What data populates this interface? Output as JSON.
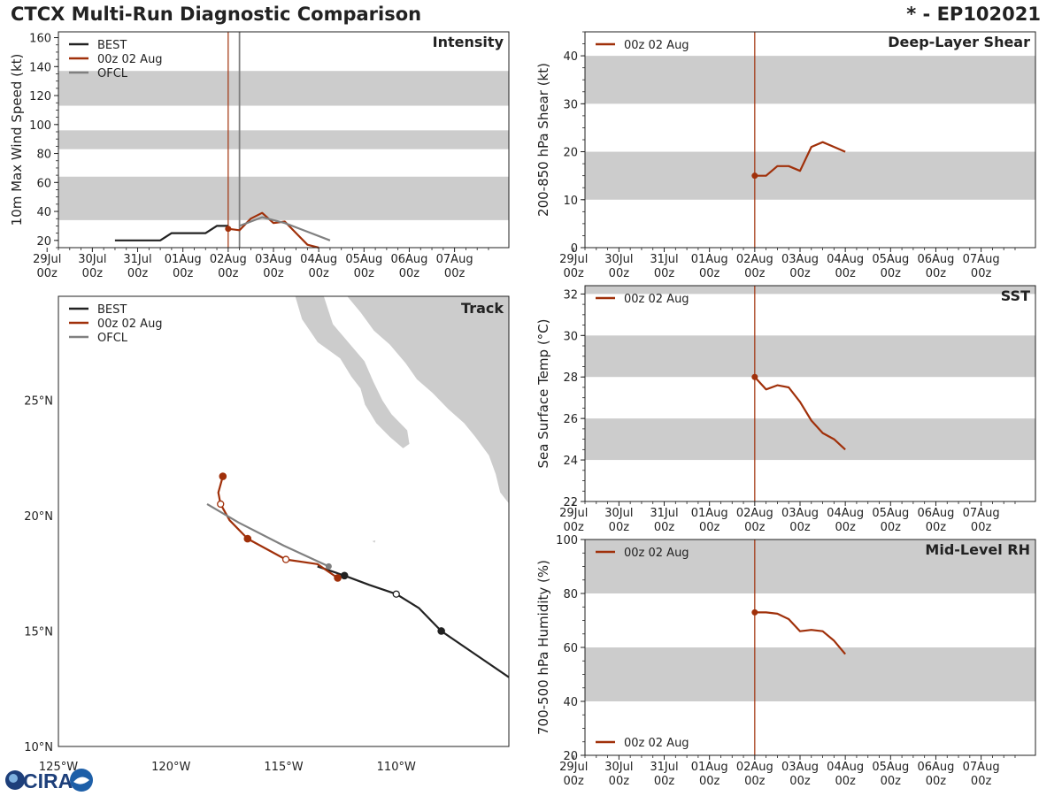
{
  "header": {
    "title": "CTCX Multi-Run Diagnostic Comparison",
    "storm": "* - EP102021"
  },
  "logo": {
    "text": "CIRA"
  },
  "colors": {
    "best": "#222222",
    "run": "#a0300a",
    "ofcl": "#808080",
    "band": "#cccccc",
    "land": "#cccccc"
  },
  "time_axis": {
    "labels": [
      "29Jul",
      "30Jul",
      "31Jul",
      "01Aug",
      "02Aug",
      "03Aug",
      "04Aug",
      "05Aug",
      "06Aug",
      "07Aug"
    ],
    "sublabels": [
      "00z",
      "00z",
      "00z",
      "00z",
      "00z",
      "00z",
      "00z",
      "00z",
      "00z",
      "00z"
    ],
    "range_days": [
      -3.75,
      6.2
    ],
    "run_time_day": 0
  },
  "chart_data": [
    {
      "id": "intensity",
      "type": "line",
      "title": "Intensity",
      "ylabel": "10m Max Wind Speed (kt)",
      "ylim": [
        15,
        164
      ],
      "yticks": [
        20,
        40,
        60,
        80,
        100,
        120,
        140,
        160
      ],
      "bands": [
        [
          34,
          64
        ],
        [
          83,
          96
        ],
        [
          113,
          137
        ]
      ],
      "ofcl_time_day": 0.25,
      "legend": [
        "BEST",
        "00z 02 Aug",
        "OFCL"
      ],
      "series": [
        {
          "name": "BEST",
          "x": [
            -2.5,
            -2.0,
            -1.5,
            -1.25,
            -1.0,
            -0.5,
            -0.25,
            0
          ],
          "y": [
            20,
            20,
            20,
            25,
            25,
            25,
            30,
            30
          ]
        },
        {
          "name": "00z 02 Aug",
          "x": [
            0,
            0.25,
            0.5,
            0.75,
            1.0,
            1.25,
            1.5,
            1.75,
            2.0
          ],
          "y": [
            28,
            27,
            35,
            39,
            32,
            33,
            25,
            17,
            15
          ]
        },
        {
          "name": "OFCL",
          "x": [
            0.25,
            0.75,
            1.25,
            1.75,
            2.25
          ],
          "y": [
            30,
            36,
            32,
            26,
            20
          ]
        }
      ]
    },
    {
      "id": "shear",
      "type": "line",
      "title": "Deep-Layer Shear",
      "ylabel": "200-850 hPa Shear (kt)",
      "ylim": [
        0,
        45
      ],
      "yticks": [
        0,
        10,
        20,
        30,
        40
      ],
      "bands": [
        [
          10,
          20
        ],
        [
          30,
          40
        ]
      ],
      "legend": [
        "00z 02 Aug"
      ],
      "series": [
        {
          "name": "00z 02 Aug",
          "x": [
            0,
            0.25,
            0.5,
            0.75,
            1.0,
            1.25,
            1.5,
            1.75,
            2.0
          ],
          "y": [
            15,
            15,
            17,
            17,
            16,
            21,
            22,
            21,
            20
          ]
        }
      ]
    },
    {
      "id": "sst",
      "type": "line",
      "title": "SST",
      "ylabel": "Sea Surface Temp (°C)",
      "ylim": [
        22,
        32.4
      ],
      "yticks": [
        22,
        24,
        26,
        28,
        30,
        32
      ],
      "bands": [
        [
          24,
          26
        ],
        [
          28,
          30
        ],
        [
          32,
          32.4
        ]
      ],
      "legend": [
        "00z 02 Aug"
      ],
      "series": [
        {
          "name": "00z 02 Aug",
          "x": [
            0,
            0.25,
            0.5,
            0.75,
            1.0,
            1.25,
            1.5,
            1.75,
            2.0
          ],
          "y": [
            28.0,
            27.4,
            27.6,
            27.5,
            26.8,
            25.9,
            25.3,
            25.0,
            24.5
          ]
        }
      ]
    },
    {
      "id": "rh",
      "type": "line",
      "title": "Mid-Level RH",
      "ylabel": "700-500 hPa Humidity (%)",
      "ylim": [
        20,
        100
      ],
      "yticks": [
        20,
        40,
        60,
        80,
        100
      ],
      "bands": [
        [
          40,
          60
        ],
        [
          80,
          100
        ]
      ],
      "legend": [
        "00z 02 Aug"
      ],
      "legend_bottom": "00z 02 Aug",
      "series": [
        {
          "name": "00z 02 Aug",
          "x": [
            0,
            0.25,
            0.5,
            0.75,
            1.0,
            1.25,
            1.5,
            1.75,
            2.0
          ],
          "y": [
            73,
            73,
            72.5,
            70.5,
            66,
            66.5,
            66,
            62.5,
            57.5
          ]
        }
      ]
    },
    {
      "id": "track",
      "type": "scatter",
      "title": "Track",
      "xlim": [
        -125,
        -105
      ],
      "ylim": [
        10,
        29.5
      ],
      "xticks": [
        -125,
        -120,
        -115,
        -110
      ],
      "xtick_labels": [
        "125°W",
        "120°W",
        "115°W",
        "110°W"
      ],
      "yticks": [
        10,
        15,
        20,
        25
      ],
      "ytick_labels": [
        "10°N",
        "15°N",
        "20°N",
        "25°N"
      ],
      "legend": [
        "BEST",
        "00z 02 Aug",
        "OFCL"
      ],
      "series": [
        {
          "name": "BEST",
          "lon": [
            -105,
            -106.5,
            -108.0,
            -109.0,
            -110.0,
            -111.2,
            -112.3,
            -113.5
          ],
          "lat": [
            13.0,
            14.0,
            15.0,
            16.0,
            16.6,
            17.0,
            17.4,
            17.8
          ],
          "open": [
            0,
            0,
            0,
            0,
            1,
            0,
            0,
            0
          ],
          "filled": [
            0,
            0,
            1,
            0,
            0,
            0,
            1,
            0
          ]
        },
        {
          "name": "00z 02 Aug",
          "lon": [
            -112.6,
            -113.5,
            -114.9,
            -116.6,
            -117.4,
            -117.8,
            -117.9,
            -117.7
          ],
          "lat": [
            17.3,
            17.9,
            18.1,
            19.0,
            19.8,
            20.5,
            21.0,
            21.7
          ],
          "open": [
            0,
            0,
            1,
            0,
            0,
            1,
            0,
            0
          ],
          "filled": [
            1,
            0,
            0,
            1,
            0,
            0,
            0,
            1
          ]
        },
        {
          "name": "OFCL",
          "lon": [
            -113.0,
            -115.0,
            -117.0,
            -118.4
          ],
          "lat": [
            17.8,
            18.7,
            19.7,
            20.5
          ]
        }
      ],
      "land": [
        {
          "name": "baja",
          "pts": [
            [
              -114.5,
              29.5
            ],
            [
              -114.2,
              28.5
            ],
            [
              -113.5,
              27.5
            ],
            [
              -112.5,
              26.8
            ],
            [
              -112.0,
              26.0
            ],
            [
              -111.6,
              25.5
            ],
            [
              -111.4,
              24.8
            ],
            [
              -110.9,
              24.0
            ],
            [
              -110.3,
              23.4
            ],
            [
              -109.7,
              22.9
            ],
            [
              -109.4,
              23.1
            ],
            [
              -109.5,
              23.7
            ],
            [
              -110.2,
              24.4
            ],
            [
              -110.6,
              25.0
            ],
            [
              -111.0,
              25.8
            ],
            [
              -111.4,
              26.7
            ],
            [
              -112.1,
              27.5
            ],
            [
              -112.8,
              28.3
            ],
            [
              -113.2,
              29.5
            ]
          ]
        },
        {
          "name": "mainland",
          "pts": [
            [
              -112.2,
              29.5
            ],
            [
              -111.6,
              28.8
            ],
            [
              -111.0,
              28.0
            ],
            [
              -110.3,
              27.4
            ],
            [
              -109.6,
              26.6
            ],
            [
              -109.1,
              25.9
            ],
            [
              -108.4,
              25.3
            ],
            [
              -107.7,
              24.6
            ],
            [
              -107.0,
              24.0
            ],
            [
              -106.5,
              23.4
            ],
            [
              -105.9,
              22.6
            ],
            [
              -105.6,
              21.8
            ],
            [
              -105.4,
              21.0
            ],
            [
              -105.0,
              20.5
            ],
            [
              -105.0,
              29.5
            ]
          ]
        },
        {
          "name": "islet",
          "pts": [
            [
              -111.1,
              18.9
            ],
            [
              -110.9,
              18.95
            ],
            [
              -110.95,
              18.8
            ]
          ]
        }
      ]
    }
  ]
}
